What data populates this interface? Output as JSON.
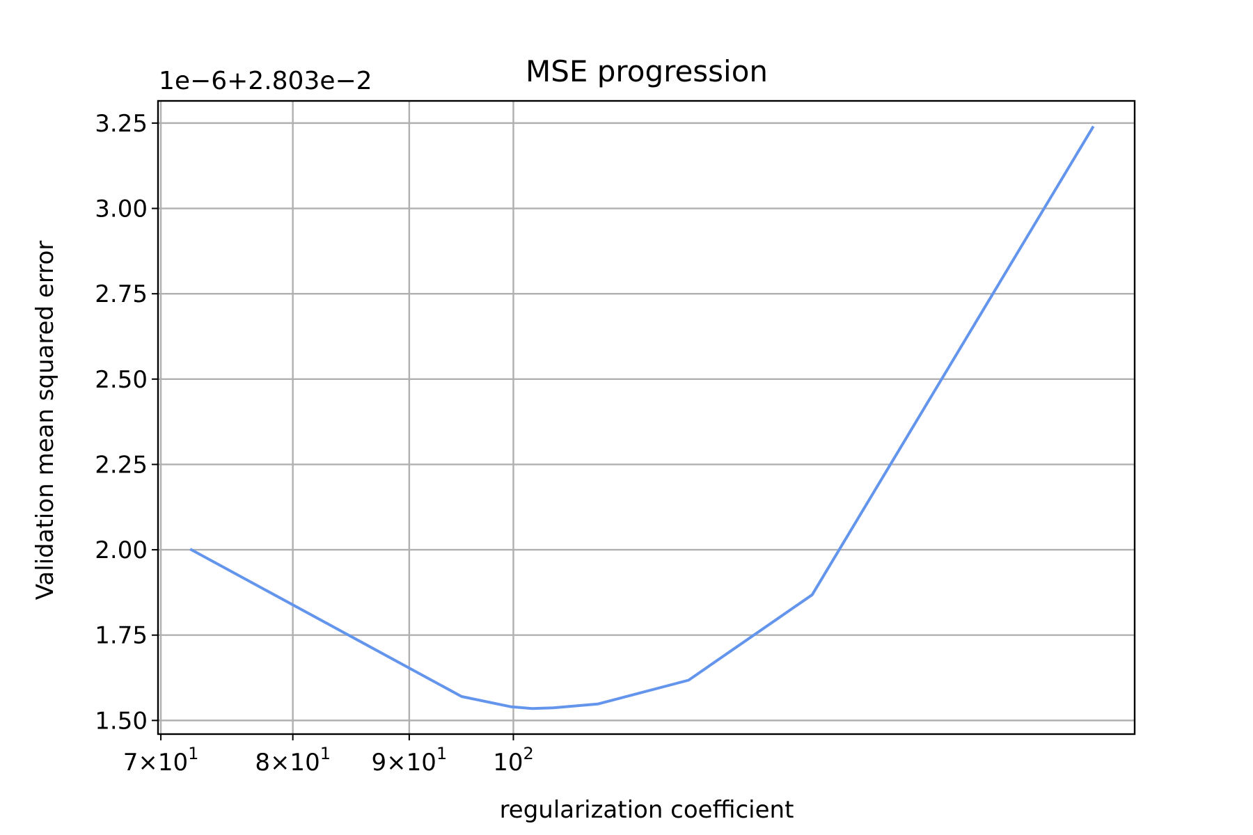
{
  "chart_data": {
    "type": "line",
    "title": "MSE progression",
    "xlabel": "regularization coefficient",
    "ylabel": "Validation mean squared error",
    "offset_label": "1e−6+2.803e−2",
    "x_scale": "log",
    "xlim": [
      69.8,
      187.5
    ],
    "ylim": [
      1.46,
      3.315
    ],
    "grid": true,
    "legend": "none",
    "line_color": "#6495ED",
    "x_ticks": [
      {
        "value": 70,
        "base": "7×10",
        "exp": "1"
      },
      {
        "value": 80,
        "base": "8×10",
        "exp": "1"
      },
      {
        "value": 90,
        "base": "9×10",
        "exp": "1"
      },
      {
        "value": 100,
        "base": "10",
        "exp": "2"
      }
    ],
    "y_ticks": [
      {
        "value": 1.5,
        "label": "1.50"
      },
      {
        "value": 1.75,
        "label": "1.75"
      },
      {
        "value": 2.0,
        "label": "2.00"
      },
      {
        "value": 2.25,
        "label": "2.25"
      },
      {
        "value": 2.5,
        "label": "2.50"
      },
      {
        "value": 2.75,
        "label": "2.75"
      },
      {
        "value": 3.0,
        "label": "3.00"
      },
      {
        "value": 3.25,
        "label": "3.25"
      }
    ],
    "series": [
      {
        "x": [
          72.2,
          94.9,
          99.8,
          101.9,
          104.1,
          108.9,
          119.4,
          135.3,
          179.7
        ],
        "y": [
          2.0,
          1.57,
          1.54,
          1.535,
          1.537,
          1.548,
          1.618,
          1.868,
          3.237
        ]
      }
    ]
  }
}
